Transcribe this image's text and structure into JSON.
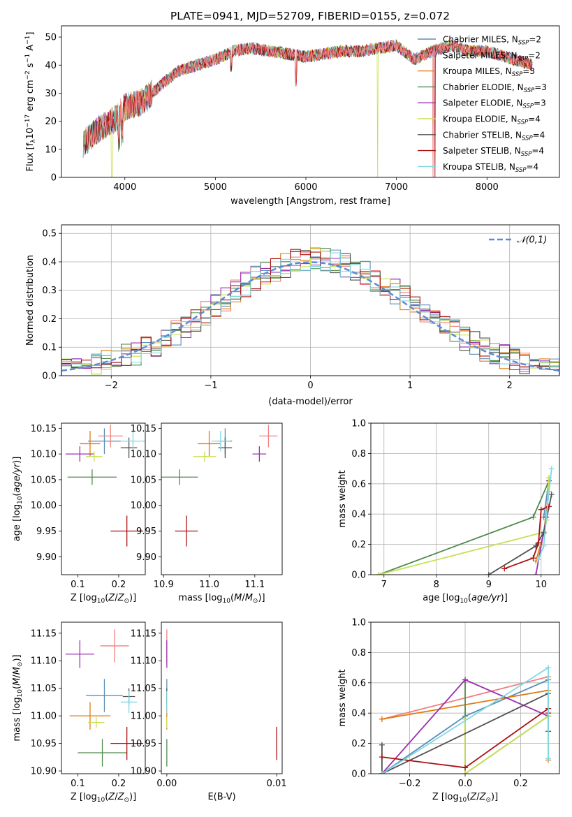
{
  "title": "PLATE=0941, MJD=52709, FIBERID=0155, z=0.072",
  "colors": [
    "#5b8db8",
    "#f08080",
    "#e07a10",
    "#4c8a4c",
    "#9b30b0",
    "#c8e050",
    "#505050",
    "#aa1010",
    "#80d8e0"
  ],
  "chart_data": [
    {
      "id": "spectrum",
      "type": "line",
      "xlabel": "wavelength [Angstrom, rest frame]",
      "ylabel": "Flux [f_λ10^-17 erg cm^-2 s^-1 A^-1]",
      "xlim": [
        3300,
        8800
      ],
      "ylim": [
        0,
        54
      ],
      "xticks": [
        4000,
        5000,
        6000,
        7000,
        8000
      ],
      "yticks": [
        0,
        10,
        20,
        30,
        40,
        50
      ],
      "continuum": {
        "x": [
          3540,
          3700,
          3900,
          4000,
          4200,
          4400,
          4600,
          4800,
          5000,
          5200,
          5400,
          5600,
          5800,
          6000,
          6200,
          6400,
          6600,
          6800,
          7000,
          7200,
          7400,
          7600,
          7800,
          8000,
          8200,
          8400,
          8500
        ],
        "y": [
          12,
          17,
          21,
          25,
          27,
          33,
          38,
          40,
          42,
          45,
          46,
          45,
          44,
          43,
          44,
          45,
          45,
          46,
          47,
          42,
          45,
          47,
          45,
          45,
          43,
          41,
          40
        ]
      },
      "dropouts": [
        {
          "x": 6790,
          "series": 5
        },
        {
          "x": 7400,
          "series": 1
        },
        {
          "x": 7420,
          "series": 7
        }
      ],
      "series": [
        {
          "name": "Chabrier MILES, N_SSP=2"
        },
        {
          "name": "Salpeter MILES, N_SSP=2"
        },
        {
          "name": "Kroupa MILES, N_SSP=3"
        },
        {
          "name": "Chabrier ELODIE, N_SSP=3"
        },
        {
          "name": "Salpeter ELODIE, N_SSP=3"
        },
        {
          "name": "Kroupa ELODIE, N_SSP=4"
        },
        {
          "name": "Chabrier STELIB, N_SSP=4"
        },
        {
          "name": "Salpeter STELIB, N_SSP=4"
        },
        {
          "name": "Kroupa STELIB, N_SSP=4"
        }
      ],
      "legend": "top-right"
    },
    {
      "id": "residuals",
      "type": "histogram",
      "xlabel": "(data-model)/error",
      "ylabel": "Normed distribution",
      "xlim": [
        -2.5,
        2.5
      ],
      "ylim": [
        0,
        0.53
      ],
      "xticks": [
        -2,
        -1,
        0,
        1,
        2
      ],
      "yticks": [
        0.0,
        0.1,
        0.2,
        0.3,
        0.4,
        0.5
      ],
      "bin_start": -2.5,
      "bin_width": 0.1,
      "reference_curve": {
        "name": "𝒩(0,1)",
        "mean": 0,
        "sigma": 1
      },
      "grid": true,
      "legend": "top-right"
    },
    {
      "id": "age-vs-Z",
      "type": "errorbar",
      "xlabel": "Z [log10(Z/Z⊙)]",
      "ylabel": "age  [log10(age/yr)]",
      "xlim": [
        0.06,
        0.265
      ],
      "ylim": [
        9.865,
        10.16
      ],
      "xticks": [
        0.1,
        0.2
      ],
      "yticks": [
        9.9,
        9.95,
        10.0,
        10.05,
        10.1,
        10.15
      ],
      "points": [
        {
          "x": 0.165,
          "y": 10.125,
          "xerr": 0.04,
          "yerr": 0.025
        },
        {
          "x": 0.18,
          "y": 10.135,
          "xerr": 0.03,
          "yerr": 0.022
        },
        {
          "x": 0.13,
          "y": 10.12,
          "xerr": 0.025,
          "yerr": 0.025
        },
        {
          "x": 0.135,
          "y": 10.055,
          "xerr": 0.06,
          "yerr": 0.015
        },
        {
          "x": 0.105,
          "y": 10.1,
          "xerr": 0.035,
          "yerr": 0.015
        },
        {
          "x": 0.14,
          "y": 10.095,
          "xerr": 0.02,
          "yerr": 0.01
        },
        {
          "x": 0.225,
          "y": 10.112,
          "xerr": 0.02,
          "yerr": 0.02
        },
        {
          "x": 0.22,
          "y": 9.95,
          "xerr": 0.04,
          "yerr": 0.03
        },
        {
          "x": 0.235,
          "y": 10.125,
          "xerr": 0.03,
          "yerr": 0.02
        }
      ]
    },
    {
      "id": "age-vs-mass",
      "type": "errorbar",
      "xlabel": "mass [log10(M/M⊙)]",
      "ylabel": "",
      "xlim": [
        10.895,
        11.16
      ],
      "ylim": [
        9.865,
        10.16
      ],
      "xticks": [
        10.9,
        11.0,
        11.1
      ],
      "yticks": [
        9.9,
        9.95,
        10.0,
        10.05,
        10.1,
        10.15
      ],
      "points": [
        {
          "x": 11.035,
          "y": 10.125,
          "xerr": 0.015,
          "yerr": 0.025
        },
        {
          "x": 11.13,
          "y": 10.135,
          "xerr": 0.02,
          "yerr": 0.022
        },
        {
          "x": 11.0,
          "y": 10.12,
          "xerr": 0.025,
          "yerr": 0.025
        },
        {
          "x": 10.935,
          "y": 10.055,
          "xerr": 0.04,
          "yerr": 0.015
        },
        {
          "x": 11.11,
          "y": 10.1,
          "xerr": 0.015,
          "yerr": 0.015
        },
        {
          "x": 10.99,
          "y": 10.095,
          "xerr": 0.025,
          "yerr": 0.01
        },
        {
          "x": 11.035,
          "y": 10.112,
          "xerr": 0.015,
          "yerr": 0.02
        },
        {
          "x": 10.95,
          "y": 9.95,
          "xerr": 0.025,
          "yerr": 0.03
        },
        {
          "x": 11.025,
          "y": 10.125,
          "xerr": 0.02,
          "yerr": 0.02
        }
      ]
    },
    {
      "id": "mass-weight-vs-age",
      "type": "line",
      "xlabel": "age  [log10(age/yr)]",
      "ylabel": "mass weight",
      "xlim": [
        6.75,
        10.35
      ],
      "ylim": [
        0,
        1
      ],
      "xticks": [
        7,
        8,
        9,
        10
      ],
      "yticks": [
        0.0,
        0.2,
        0.4,
        0.6,
        0.8,
        1.0
      ],
      "grid": true,
      "series": [
        {
          "x": [
            10.05,
            10.15
          ],
          "y": [
            0.38,
            0.62
          ]
        },
        {
          "x": [
            10.15,
            10.1
          ],
          "y": [
            0.64,
            0.36
          ]
        },
        {
          "x": [
            9.9,
            10.05,
            10.15
          ],
          "y": [
            0.09,
            0.27,
            0.55
          ]
        },
        {
          "x": [
            6.9,
            9.85,
            10.15
          ],
          "y": [
            0.0,
            0.38,
            0.62
          ]
        },
        {
          "x": [
            9.9,
            10.1,
            10.15
          ],
          "y": [
            0.0,
            0.38,
            0.62
          ]
        },
        {
          "x": [
            6.9,
            10.05,
            10.1,
            10.15
          ],
          "y": [
            0.0,
            0.28,
            0.36,
            0.64
          ]
        },
        {
          "x": [
            9.0,
            9.9,
            10.05,
            10.2
          ],
          "y": [
            0.0,
            0.19,
            0.28,
            0.53
          ]
        },
        {
          "x": [
            9.3,
            9.85,
            9.95,
            10.0,
            10.15
          ],
          "y": [
            0.04,
            0.11,
            0.21,
            0.43,
            0.45
          ]
        },
        {
          "x": [
            9.95,
            10.05,
            10.15,
            10.2
          ],
          "y": [
            0.1,
            0.19,
            0.55,
            0.7
          ]
        }
      ]
    },
    {
      "id": "mass-vs-Z",
      "type": "errorbar",
      "xlabel": "Z [log10(Z/Z⊙)]",
      "ylabel": "mass [log10(M/M⊙)]",
      "xlim": [
        0.06,
        0.265
      ],
      "ylim": [
        10.895,
        11.17
      ],
      "xticks": [
        0.1,
        0.2
      ],
      "yticks": [
        10.9,
        10.95,
        11.0,
        11.05,
        11.1,
        11.15
      ],
      "points": [
        {
          "x": 0.165,
          "y": 11.037,
          "xerr": 0.045,
          "yerr": 0.03
        },
        {
          "x": 0.19,
          "y": 11.127,
          "xerr": 0.035,
          "yerr": 0.03
        },
        {
          "x": 0.13,
          "y": 11.0,
          "xerr": 0.05,
          "yerr": 0.025
        },
        {
          "x": 0.16,
          "y": 10.933,
          "xerr": 0.06,
          "yerr": 0.025
        },
        {
          "x": 0.105,
          "y": 11.112,
          "xerr": 0.035,
          "yerr": 0.025
        },
        {
          "x": 0.145,
          "y": 10.988,
          "xerr": 0.02,
          "yerr": 0.01
        },
        {
          "x": 0.225,
          "y": 11.035,
          "xerr": 0.015,
          "yerr": 0.015
        },
        {
          "x": 0.22,
          "y": 10.95,
          "xerr": 0.04,
          "yerr": 0.03
        },
        {
          "x": 0.225,
          "y": 11.025,
          "xerr": 0.02,
          "yerr": 0.02
        }
      ]
    },
    {
      "id": "mass-vs-EBV",
      "type": "errorbar",
      "xlabel": "E(B-V)",
      "ylabel": "",
      "xlim": [
        -0.0005,
        0.0105
      ],
      "ylim": [
        10.895,
        11.17
      ],
      "xticks": [
        0.0,
        0.01
      ],
      "yticks": [
        10.9,
        10.95,
        11.0,
        11.05,
        11.1,
        11.15
      ],
      "points": [
        {
          "x": 0.0,
          "y": 11.037,
          "xerr": 0,
          "yerr": 0.03
        },
        {
          "x": 0.0,
          "y": 11.127,
          "xerr": 0,
          "yerr": 0.03
        },
        {
          "x": 0.0,
          "y": 11.0,
          "xerr": 0,
          "yerr": 0.025
        },
        {
          "x": 0.0,
          "y": 10.933,
          "xerr": 0,
          "yerr": 0.025
        },
        {
          "x": 0.0,
          "y": 11.112,
          "xerr": 0,
          "yerr": 0.025
        },
        {
          "x": 0.0,
          "y": 10.988,
          "xerr": 0,
          "yerr": 0.01
        },
        {
          "x": 0.0,
          "y": 11.035,
          "xerr": 0,
          "yerr": 0.015
        },
        {
          "x": 0.01,
          "y": 10.95,
          "xerr": 0,
          "yerr": 0.03
        },
        {
          "x": 0.0,
          "y": 11.025,
          "xerr": 0,
          "yerr": 0.02
        }
      ]
    },
    {
      "id": "mass-weight-vs-Z",
      "type": "line",
      "xlabel": "Z [log10(Z/Z⊙)]",
      "ylabel": "mass weight",
      "xlim": [
        -0.34,
        0.34
      ],
      "ylim": [
        0,
        1
      ],
      "xticks": [
        -0.2,
        0.0,
        0.2
      ],
      "yticks": [
        0.0,
        0.2,
        0.4,
        0.6,
        0.8,
        1.0
      ],
      "grid": true,
      "series": [
        {
          "x": [
            -0.3,
            0.0,
            0.3
          ],
          "y": [
            0.0,
            0.38,
            0.62
          ]
        },
        {
          "x": [
            -0.3,
            0.3
          ],
          "y": [
            0.36,
            0.64
          ]
        },
        {
          "x": [
            -0.3,
            0.3,
            0.3
          ],
          "y": [
            0.36,
            0.55,
            0.09
          ]
        },
        {
          "x": [
            0.0,
            0.0,
            0.3
          ],
          "y": [
            0.62,
            0.0,
            0.38
          ]
        },
        {
          "x": [
            -0.3,
            0.0,
            0.3
          ],
          "y": [
            0.0,
            0.62,
            0.38
          ]
        },
        {
          "x": [
            0.0,
            0.0,
            0.3
          ],
          "y": [
            0.36,
            0.0,
            0.38
          ]
        },
        {
          "x": [
            -0.3,
            -0.3,
            0.3,
            0.3
          ],
          "y": [
            0.19,
            0.0,
            0.53,
            0.28
          ]
        },
        {
          "x": [
            -0.3,
            0.0,
            0.3,
            0.3
          ],
          "y": [
            0.11,
            0.04,
            0.43,
            0.4
          ]
        },
        {
          "x": [
            -0.3,
            0.3,
            0.3
          ],
          "y": [
            0.0,
            0.7,
            0.1
          ]
        }
      ]
    }
  ]
}
